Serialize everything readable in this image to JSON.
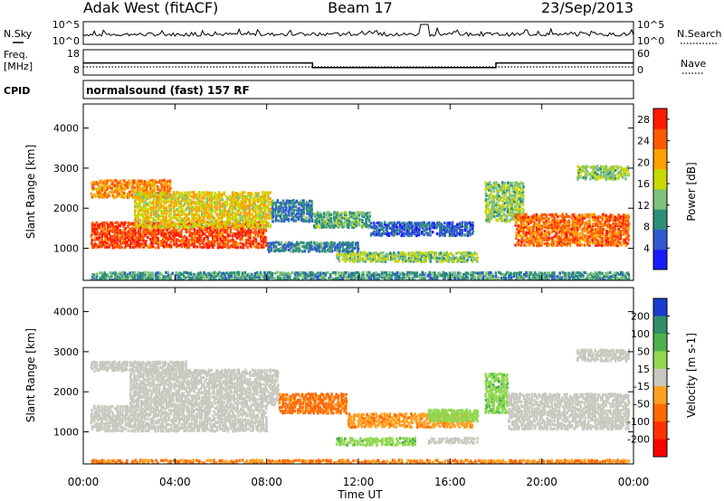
{
  "header": {
    "station": "Adak West (fitACF)",
    "beam": "Beam 17",
    "date": "23/Sep/2013"
  },
  "noise_panel": {
    "left_label": "N.Sky",
    "right_label": "N.Search",
    "left_ticks": [
      "10^5",
      "10^0"
    ],
    "right_ticks": [
      "10^5",
      "10^0"
    ]
  },
  "freq_panel": {
    "left_label_line1": "Freq.",
    "left_label_line2": "[MHz]",
    "left_ticks": [
      "18",
      "8"
    ],
    "right_label": "Nave",
    "right_ticks": [
      "60",
      "0"
    ],
    "freq_mhz": [
      {
        "t": 0,
        "f": 13.2
      },
      {
        "t": 10,
        "f": 13.2
      },
      {
        "t": 10,
        "f": 10.8
      },
      {
        "t": 18,
        "f": 10.8
      },
      {
        "t": 18,
        "f": 13.2
      },
      {
        "t": 24,
        "f": 13.2
      }
    ]
  },
  "cpid": {
    "label": "CPID",
    "text": "normalsound (fast) 157 RF"
  },
  "chart_data": [
    {
      "type": "heatmap",
      "quantity": "Power",
      "ylabel": "Slant Range [km]",
      "xlabel": "Time UT",
      "xlim": [
        0,
        24
      ],
      "ylim": [
        200,
        4600
      ],
      "x_ticks": [
        "00:00",
        "04:00",
        "08:00",
        "12:00",
        "16:00",
        "20:00",
        "00:00"
      ],
      "y_ticks": [
        "1000",
        "2000",
        "3000",
        "4000"
      ],
      "colorbar": {
        "label": "Power [dB]",
        "ticks": [
          "4",
          "8",
          "12",
          "16",
          "20",
          "24",
          "28"
        ],
        "range": [
          0,
          30
        ],
        "colors": [
          "#1a1aff",
          "#3058d0",
          "#2e8f7a",
          "#7fc17a",
          "#c8d800",
          "#ffa000",
          "#ff5a00",
          "#ff1a00"
        ]
      },
      "regions": [
        {
          "t0": 0.3,
          "t1": 8.0,
          "r0": 1050,
          "r1": 1700,
          "v": 26
        },
        {
          "t0": 0.3,
          "t1": 3.8,
          "r0": 2300,
          "r1": 2750,
          "v": 22
        },
        {
          "t0": 2.2,
          "t1": 8.2,
          "r0": 1550,
          "r1": 2450,
          "v": 18
        },
        {
          "t0": 8.2,
          "t1": 10.0,
          "r0": 1700,
          "r1": 2250,
          "v": 8
        },
        {
          "t0": 10.0,
          "t1": 12.5,
          "r0": 1550,
          "r1": 1950,
          "v": 12
        },
        {
          "t0": 12.5,
          "t1": 17.0,
          "r0": 1350,
          "r1": 1700,
          "v": 6
        },
        {
          "t0": 11.0,
          "t1": 17.2,
          "r0": 700,
          "r1": 950,
          "v": 14
        },
        {
          "t0": 8.0,
          "t1": 12.0,
          "r0": 950,
          "r1": 1200,
          "v": 8
        },
        {
          "t0": 17.5,
          "t1": 19.2,
          "r0": 1700,
          "r1": 2700,
          "v": 14
        },
        {
          "t0": 18.8,
          "t1": 23.8,
          "r0": 1100,
          "r1": 1900,
          "v": 24
        },
        {
          "t0": 21.5,
          "t1": 23.8,
          "r0": 2750,
          "r1": 3100,
          "v": 14
        },
        {
          "t0": 0.3,
          "t1": 23.8,
          "r0": 200,
          "r1": 450,
          "v": 10
        }
      ]
    },
    {
      "type": "heatmap",
      "quantity": "Velocity",
      "ylabel": "Slant Range [km]",
      "xlabel": "Time UT",
      "xlim": [
        0,
        24
      ],
      "ylim": [
        200,
        4600
      ],
      "x_ticks": [
        "00:00",
        "04:00",
        "08:00",
        "12:00",
        "16:00",
        "20:00",
        "00:00"
      ],
      "y_ticks": [
        "1000",
        "2000",
        "3000",
        "4000"
      ],
      "colorbar": {
        "label": "Velocity [m s-1]",
        "ticks": [
          "200",
          "100",
          "50",
          "15",
          "-15",
          "-50",
          "-100",
          "-200"
        ],
        "colors": [
          "#1a3cd0",
          "#2e8f6a",
          "#4fb04f",
          "#8fd84f",
          "#c8c8c0",
          "#ffa020",
          "#ff6a00",
          "#ff3000",
          "#ff0000"
        ]
      },
      "regions": [
        {
          "t0": 0.3,
          "t1": 8.0,
          "r0": 1050,
          "r1": 1700,
          "v": 0
        },
        {
          "t0": 2.0,
          "t1": 8.5,
          "r0": 1700,
          "r1": 2600,
          "v": 0
        },
        {
          "t0": 0.3,
          "t1": 4.5,
          "r0": 2550,
          "r1": 2800,
          "v": 0
        },
        {
          "t0": 8.5,
          "t1": 11.5,
          "r0": 1500,
          "r1": 2000,
          "v": -60
        },
        {
          "t0": 11.5,
          "t1": 17.0,
          "r0": 1150,
          "r1": 1500,
          "v": -40
        },
        {
          "t0": 15.0,
          "t1": 17.2,
          "r0": 1300,
          "r1": 1600,
          "v": 30
        },
        {
          "t0": 11.0,
          "t1": 14.5,
          "r0": 700,
          "r1": 900,
          "v": 40
        },
        {
          "t0": 15.0,
          "t1": 17.2,
          "r0": 750,
          "r1": 900,
          "v": 0
        },
        {
          "t0": 17.5,
          "t1": 18.5,
          "r0": 1500,
          "r1": 2500,
          "v": 40
        },
        {
          "t0": 18.5,
          "t1": 23.8,
          "r0": 1100,
          "r1": 2000,
          "v": 0
        },
        {
          "t0": 21.5,
          "t1": 23.8,
          "r0": 2800,
          "r1": 3100,
          "v": 0
        },
        {
          "t0": 0.3,
          "t1": 23.8,
          "r0": 200,
          "r1": 350,
          "v": -50
        }
      ]
    }
  ]
}
